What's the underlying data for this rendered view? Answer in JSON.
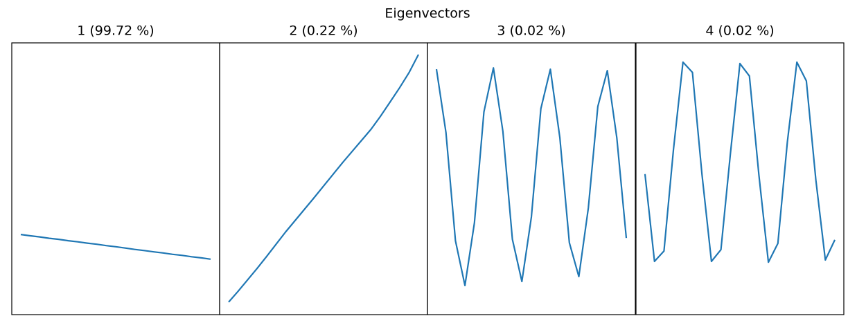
{
  "title": "Eigenvectors",
  "chart_data": [
    {
      "type": "line",
      "title": "1 (99.72 %)",
      "color": "#1f77b4",
      "ylim": [
        0,
        100
      ],
      "values": [
        29.5,
        29.0,
        28.6,
        28.1,
        27.7,
        27.2,
        26.8,
        26.3,
        25.9,
        25.4,
        25.0,
        24.5,
        24.0,
        23.6,
        23.1,
        22.7,
        22.2,
        21.8,
        21.3,
        20.9,
        20.4
      ]
    },
    {
      "type": "line",
      "title": "2 (0.22 %)",
      "color": "#1f77b4",
      "ylim": [
        0,
        100
      ],
      "values": [
        4.6,
        8.6,
        12.8,
        17.0,
        21.4,
        25.9,
        30.4,
        34.6,
        38.8,
        43.0,
        47.3,
        51.6,
        55.9,
        60.0,
        64.1,
        68.2,
        73.0,
        78.2,
        83.4,
        89.0,
        95.7
      ]
    },
    {
      "type": "line",
      "title": "3 (0.02 %)",
      "color": "#1f77b4",
      "ylim": [
        0,
        100
      ],
      "values": [
        90.3,
        67.0,
        27.2,
        10.7,
        33.8,
        74.6,
        90.8,
        67.4,
        27.7,
        12.2,
        35.9,
        75.8,
        90.3,
        65.1,
        26.5,
        14.0,
        39.2,
        76.6,
        89.8,
        65.1,
        28.2
      ]
    },
    {
      "type": "line",
      "title": "4 (0.02 %)",
      "color": "#1f77b4",
      "ylim": [
        0,
        100
      ],
      "values": [
        51.7,
        19.6,
        23.4,
        60.8,
        92.9,
        89.1,
        51.7,
        19.6,
        23.9,
        59.3,
        92.4,
        87.8,
        51.4,
        19.3,
        26.2,
        63.6,
        92.9,
        86.0,
        49.6,
        20.1,
        27.5
      ]
    }
  ]
}
